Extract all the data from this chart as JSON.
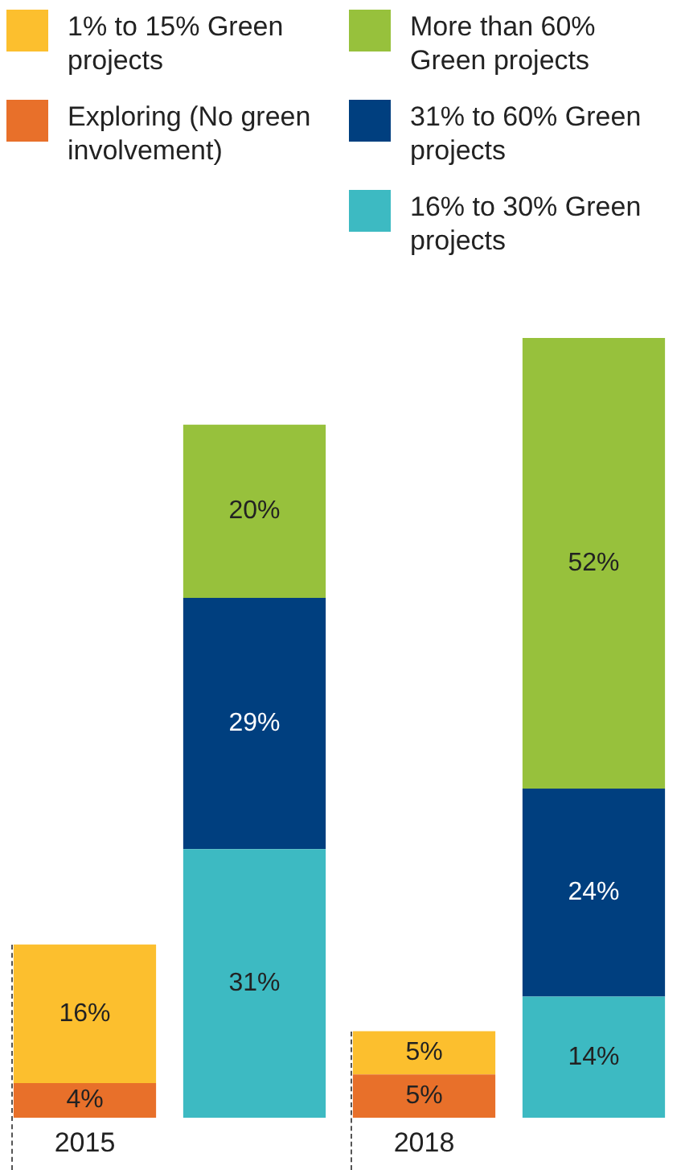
{
  "chart_data": {
    "type": "bar",
    "stacked": true,
    "legend": "top",
    "categories": [
      "2015",
      null,
      "2018",
      null
    ],
    "series": [
      {
        "name": "Exploring (No green involvement)",
        "color": "#e8702a",
        "values": [
          4,
          null,
          5,
          null
        ],
        "value_labels": [
          "4%",
          null,
          "5%",
          null
        ]
      },
      {
        "name": "1% to 15% Green projects",
        "color": "#fcbf2e",
        "values": [
          16,
          null,
          5,
          null
        ],
        "value_labels": [
          "16%",
          null,
          "5%",
          null
        ]
      },
      {
        "name": "16% to 30% Green projects",
        "color": "#3dbac2",
        "values": [
          null,
          31,
          null,
          14
        ],
        "value_labels": [
          null,
          "31%",
          null,
          "14%"
        ]
      },
      {
        "name": "31% to 60% Green projects",
        "color": "#003f7f",
        "values": [
          null,
          29,
          null,
          24
        ],
        "value_labels": [
          null,
          "29%",
          null,
          "24%"
        ]
      },
      {
        "name": "More than 60% Green projects",
        "color": "#97c13c",
        "values": [
          null,
          20,
          null,
          52
        ],
        "value_labels": [
          null,
          "20%",
          null,
          "52%"
        ]
      }
    ]
  }
}
